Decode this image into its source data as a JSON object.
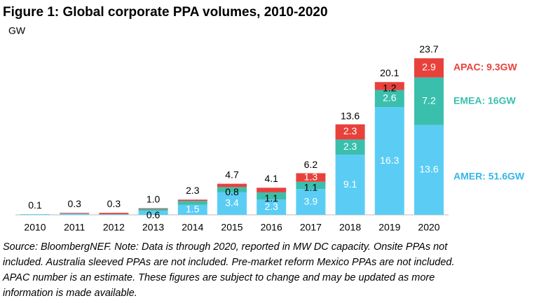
{
  "chart_data": {
    "type": "stacked-bar",
    "title": "Figure 1: Global corporate PPA volumes, 2010-2020",
    "y_label": "GW",
    "categories": [
      "2010",
      "2011",
      "2012",
      "2013",
      "2014",
      "2015",
      "2016",
      "2017",
      "2018",
      "2019",
      "2020"
    ],
    "series": [
      {
        "name": "AMER: 51.6GW",
        "color": "#5bcdf5",
        "values": [
          0.1,
          0.2,
          0.1,
          0.6,
          1.5,
          3.4,
          2.3,
          3.9,
          9.1,
          16.3,
          13.6
        ],
        "value_labels": [
          null,
          null,
          null,
          "0.6",
          "1.5",
          "3.4",
          "2.3",
          "3.9",
          "9.1",
          "16.3",
          "13.6"
        ]
      },
      {
        "name": "EMEA: 16GW",
        "color": "#3bbfad",
        "values": [
          0,
          0,
          0,
          0.3,
          0.6,
          0.8,
          1.1,
          1.1,
          2.3,
          2.6,
          7.2
        ],
        "value_labels": [
          null,
          null,
          null,
          null,
          null,
          "0.8",
          "1.1",
          "1.1",
          "2.3",
          "2.6",
          "7.2"
        ]
      },
      {
        "name": "APAC: 9.3GW",
        "color": "#e8413c",
        "values": [
          0,
          0.1,
          0.2,
          0.1,
          0.2,
          0.5,
          0.7,
          1.3,
          2.3,
          1.2,
          2.9
        ],
        "value_labels": [
          null,
          null,
          null,
          null,
          null,
          null,
          null,
          "1.3",
          "2.3",
          "1.2",
          "2.9"
        ]
      }
    ],
    "totals": [
      0.1,
      0.3,
      0.3,
      1.0,
      2.3,
      4.7,
      4.1,
      6.2,
      13.6,
      20.1,
      23.7
    ],
    "total_labels": [
      "0.1",
      "0.3",
      "0.3",
      "1.0",
      "2.3",
      "4.7",
      "4.1",
      "6.2",
      "13.6",
      "20.1",
      "23.7"
    ],
    "ylim": [
      0,
      25
    ],
    "note": [
      "Source: BloombergNEF. Note: Data is through 2020, reported in MW DC capacity. Onsite PPAs not",
      "included. Australia sleeved PPAs are not included. Pre-market reform Mexico PPAs are not included.",
      "APAC number is an estimate. These figures are subject to change and may be updated as more",
      "information is made available."
    ]
  }
}
